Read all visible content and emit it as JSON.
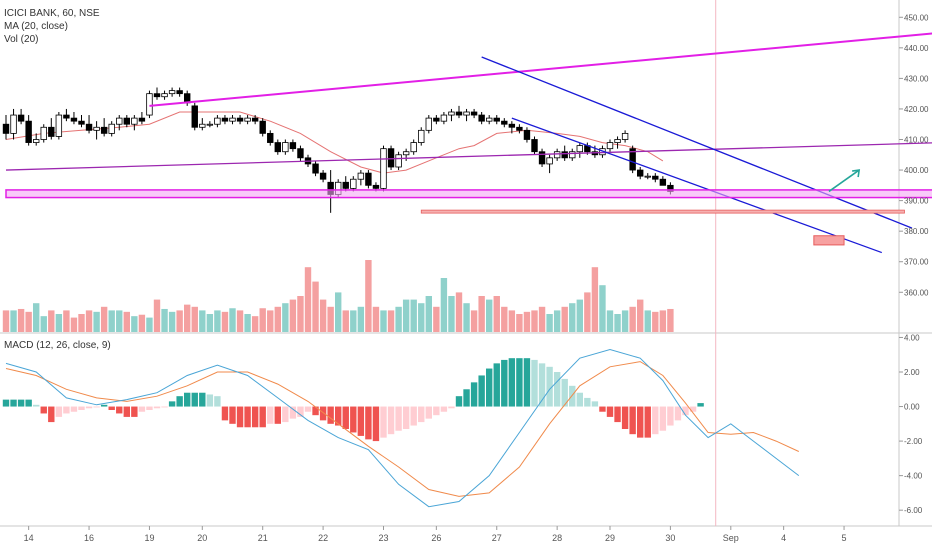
{
  "header": {
    "symbol_line": "ICICI BANK, 60, NSE",
    "ma_label": "MA (20, close)",
    "vol_label": "Vol (20)"
  },
  "macd_header": "MACD (12, 26, close, 9)",
  "chart_data": {
    "type": "candlestick",
    "symbol": "ICICI BANK",
    "interval": "60",
    "exchange": "NSE",
    "price_axis": {
      "ylim": [
        347,
        455
      ],
      "ticks": [
        360,
        370,
        380,
        390,
        400,
        410,
        420,
        430,
        440,
        450
      ],
      "tick_labels": [
        "360.00",
        "370.00",
        "380.00",
        "390.00",
        "400.00",
        "410.00",
        "420.00",
        "430.00",
        "440.00",
        "450.00"
      ]
    },
    "macd_axis": {
      "ylim": [
        -6.8,
        4.2
      ],
      "ticks": [
        -6,
        -4,
        -2,
        0,
        2,
        4
      ],
      "tick_labels": [
        "-6.00",
        "-4.00",
        "-2.00",
        "0.00",
        "2.00",
        "4.00"
      ]
    },
    "date_axis": {
      "labels": [
        "14",
        "16",
        "19",
        "20",
        "21",
        "22",
        "23",
        "26",
        "27",
        "28",
        "29",
        "30",
        "Sep",
        "4",
        "5"
      ],
      "slot_index": [
        3,
        11,
        19,
        26,
        34,
        42,
        50,
        57,
        65,
        73,
        80,
        88,
        96,
        103,
        111
      ]
    },
    "candles": [
      {
        "o": 415,
        "h": 418,
        "l": 410,
        "c": 412
      },
      {
        "o": 412,
        "h": 420,
        "l": 410,
        "c": 418
      },
      {
        "o": 418,
        "h": 420,
        "l": 415,
        "c": 416
      },
      {
        "o": 416,
        "h": 418,
        "l": 408,
        "c": 409
      },
      {
        "o": 409,
        "h": 412,
        "l": 408,
        "c": 410
      },
      {
        "o": 410,
        "h": 415,
        "l": 409,
        "c": 414
      },
      {
        "o": 414,
        "h": 417,
        "l": 410,
        "c": 411
      },
      {
        "o": 411,
        "h": 419,
        "l": 410,
        "c": 418
      },
      {
        "o": 418,
        "h": 420,
        "l": 416,
        "c": 417
      },
      {
        "o": 417,
        "h": 419,
        "l": 415,
        "c": 416
      },
      {
        "o": 416,
        "h": 418,
        "l": 414,
        "c": 415
      },
      {
        "o": 415,
        "h": 418,
        "l": 412,
        "c": 413
      },
      {
        "o": 413,
        "h": 416,
        "l": 410,
        "c": 414
      },
      {
        "o": 414,
        "h": 417,
        "l": 411,
        "c": 412
      },
      {
        "o": 412,
        "h": 416,
        "l": 411,
        "c": 415
      },
      {
        "o": 415,
        "h": 418,
        "l": 413,
        "c": 417
      },
      {
        "o": 417,
        "h": 418,
        "l": 414,
        "c": 415
      },
      {
        "o": 415,
        "h": 418,
        "l": 413,
        "c": 417
      },
      {
        "o": 417,
        "h": 419,
        "l": 415,
        "c": 416
      },
      {
        "o": 418,
        "h": 426,
        "l": 417,
        "c": 425
      },
      {
        "o": 425,
        "h": 427,
        "l": 423,
        "c": 424
      },
      {
        "o": 424,
        "h": 426,
        "l": 423,
        "c": 425
      },
      {
        "o": 425,
        "h": 427,
        "l": 424,
        "c": 426
      },
      {
        "o": 426,
        "h": 427,
        "l": 424,
        "c": 425
      },
      {
        "o": 425,
        "h": 426,
        "l": 421,
        "c": 422
      },
      {
        "o": 421,
        "h": 422,
        "l": 413,
        "c": 414
      },
      {
        "o": 414,
        "h": 417,
        "l": 413,
        "c": 415
      },
      {
        "o": 415,
        "h": 416,
        "l": 414,
        "c": 415
      },
      {
        "o": 415,
        "h": 418,
        "l": 414,
        "c": 417
      },
      {
        "o": 417,
        "h": 418,
        "l": 415,
        "c": 416
      },
      {
        "o": 416,
        "h": 418,
        "l": 415,
        "c": 417
      },
      {
        "o": 417,
        "h": 418,
        "l": 415,
        "c": 416
      },
      {
        "o": 416,
        "h": 418,
        "l": 415,
        "c": 417
      },
      {
        "o": 417,
        "h": 418,
        "l": 415,
        "c": 416
      },
      {
        "o": 416,
        "h": 417,
        "l": 411,
        "c": 412
      },
      {
        "o": 412,
        "h": 413,
        "l": 408,
        "c": 409
      },
      {
        "o": 409,
        "h": 410,
        "l": 405,
        "c": 406
      },
      {
        "o": 406,
        "h": 410,
        "l": 405,
        "c": 409
      },
      {
        "o": 409,
        "h": 410,
        "l": 406,
        "c": 407
      },
      {
        "o": 407,
        "h": 408,
        "l": 403,
        "c": 404
      },
      {
        "o": 404,
        "h": 405,
        "l": 401,
        "c": 402
      },
      {
        "o": 402,
        "h": 403,
        "l": 398,
        "c": 399
      },
      {
        "o": 399,
        "h": 400,
        "l": 396,
        "c": 397
      },
      {
        "o": 396,
        "h": 400,
        "l": 386,
        "c": 392
      },
      {
        "o": 392,
        "h": 397,
        "l": 391,
        "c": 396
      },
      {
        "o": 396,
        "h": 398,
        "l": 393,
        "c": 394
      },
      {
        "o": 394,
        "h": 398,
        "l": 393,
        "c": 397
      },
      {
        "o": 397,
        "h": 400,
        "l": 395,
        "c": 399
      },
      {
        "o": 399,
        "h": 400,
        "l": 394,
        "c": 395
      },
      {
        "o": 395,
        "h": 396,
        "l": 393,
        "c": 394
      },
      {
        "o": 394,
        "h": 408,
        "l": 393,
        "c": 407
      },
      {
        "o": 407,
        "h": 408,
        "l": 400,
        "c": 401
      },
      {
        "o": 401,
        "h": 406,
        "l": 400,
        "c": 405
      },
      {
        "o": 405,
        "h": 407,
        "l": 403,
        "c": 406
      },
      {
        "o": 406,
        "h": 410,
        "l": 405,
        "c": 409
      },
      {
        "o": 409,
        "h": 414,
        "l": 408,
        "c": 413
      },
      {
        "o": 413,
        "h": 418,
        "l": 412,
        "c": 417
      },
      {
        "o": 417,
        "h": 418,
        "l": 415,
        "c": 416
      },
      {
        "o": 416,
        "h": 419,
        "l": 415,
        "c": 418
      },
      {
        "o": 418,
        "h": 420,
        "l": 416,
        "c": 419
      },
      {
        "o": 419,
        "h": 421,
        "l": 417,
        "c": 418
      },
      {
        "o": 418,
        "h": 420,
        "l": 416,
        "c": 419
      },
      {
        "o": 419,
        "h": 420,
        "l": 417,
        "c": 418
      },
      {
        "o": 418,
        "h": 419,
        "l": 415,
        "c": 416
      },
      {
        "o": 416,
        "h": 418,
        "l": 415,
        "c": 417
      },
      {
        "o": 417,
        "h": 418,
        "l": 415,
        "c": 416
      },
      {
        "o": 416,
        "h": 417,
        "l": 414,
        "c": 415
      },
      {
        "o": 415,
        "h": 416,
        "l": 412,
        "c": 414
      },
      {
        "o": 414,
        "h": 415,
        "l": 412,
        "c": 413
      },
      {
        "o": 413,
        "h": 414,
        "l": 409,
        "c": 410
      },
      {
        "o": 410,
        "h": 411,
        "l": 405,
        "c": 406
      },
      {
        "o": 406,
        "h": 407,
        "l": 401,
        "c": 402
      },
      {
        "o": 402,
        "h": 405,
        "l": 399,
        "c": 404
      },
      {
        "o": 404,
        "h": 407,
        "l": 403,
        "c": 406
      },
      {
        "o": 406,
        "h": 408,
        "l": 403,
        "c": 404
      },
      {
        "o": 404,
        "h": 407,
        "l": 403,
        "c": 406
      },
      {
        "o": 406,
        "h": 409,
        "l": 404,
        "c": 408
      },
      {
        "o": 408,
        "h": 409,
        "l": 405,
        "c": 406
      },
      {
        "o": 406,
        "h": 408,
        "l": 404,
        "c": 405
      },
      {
        "o": 405,
        "h": 408,
        "l": 404,
        "c": 407
      },
      {
        "o": 407,
        "h": 410,
        "l": 406,
        "c": 409
      },
      {
        "o": 409,
        "h": 411,
        "l": 407,
        "c": 410
      },
      {
        "o": 410,
        "h": 413,
        "l": 409,
        "c": 412
      },
      {
        "o": 407,
        "h": 408,
        "l": 399,
        "c": 400
      },
      {
        "o": 400,
        "h": 401,
        "l": 397,
        "c": 398
      },
      {
        "o": 398,
        "h": 399,
        "l": 397,
        "c": 398
      },
      {
        "o": 398,
        "h": 399,
        "l": 396,
        "c": 397
      },
      {
        "o": 397,
        "h": 398,
        "l": 395,
        "c": 395
      },
      {
        "o": 395,
        "h": 396,
        "l": 392,
        "c": 393
      }
    ],
    "ma20": [
      {
        "i": 0,
        "v": 410
      },
      {
        "i": 5,
        "v": 412
      },
      {
        "i": 10,
        "v": 413
      },
      {
        "i": 15,
        "v": 414
      },
      {
        "i": 19,
        "v": 415
      },
      {
        "i": 23,
        "v": 419
      },
      {
        "i": 27,
        "v": 419
      },
      {
        "i": 31,
        "v": 419
      },
      {
        "i": 35,
        "v": 416
      },
      {
        "i": 39,
        "v": 412
      },
      {
        "i": 43,
        "v": 406
      },
      {
        "i": 47,
        "v": 401
      },
      {
        "i": 50,
        "v": 399
      },
      {
        "i": 53,
        "v": 400
      },
      {
        "i": 57,
        "v": 404
      },
      {
        "i": 60,
        "v": 407
      },
      {
        "i": 62,
        "v": 408
      },
      {
        "i": 65,
        "v": 412
      },
      {
        "i": 69,
        "v": 413
      },
      {
        "i": 73,
        "v": 412
      },
      {
        "i": 76,
        "v": 411
      },
      {
        "i": 79,
        "v": 409
      },
      {
        "i": 82,
        "v": 408
      },
      {
        "i": 85,
        "v": 406
      },
      {
        "i": 87,
        "v": 403
      }
    ],
    "volume_levels": [
      0.3,
      0.3,
      0.32,
      0.28,
      0.4,
      0.22,
      0.3,
      0.25,
      0.3,
      0.2,
      0.25,
      0.3,
      0.28,
      0.35,
      0.3,
      0.3,
      0.28,
      0.22,
      0.24,
      0.2,
      0.45,
      0.32,
      0.28,
      0.3,
      0.38,
      0.35,
      0.3,
      0.25,
      0.3,
      0.28,
      0.33,
      0.3,
      0.25,
      0.22,
      0.33,
      0.3,
      0.35,
      0.4,
      0.45,
      0.5,
      0.9,
      0.7,
      0.45,
      0.35,
      0.55,
      0.3,
      0.3,
      0.35,
      1.0,
      0.35,
      0.3,
      0.3,
      0.35,
      0.45,
      0.45,
      0.4,
      0.5,
      0.35,
      0.75,
      0.5,
      0.55,
      0.4,
      0.3,
      0.5,
      0.45,
      0.5,
      0.35,
      0.3,
      0.25,
      0.28,
      0.3,
      0.35,
      0.25,
      0.3,
      0.35,
      0.4,
      0.45,
      0.55,
      0.9,
      0.65,
      0.3,
      0.25,
      0.3,
      0.35,
      0.45,
      0.3,
      0.28,
      0.3,
      0.32,
      0.28,
      0.3,
      0.4,
      0.28
    ],
    "macd_histogram": [
      0.4,
      0.4,
      0.4,
      0.4,
      0.1,
      -0.4,
      -0.9,
      -0.6,
      -0.4,
      -0.3,
      -0.2,
      -0.1,
      -0.05,
      0.1,
      -0.2,
      -0.4,
      -0.6,
      -0.6,
      -0.3,
      -0.2,
      -0.1,
      -0.05,
      0.3,
      0.6,
      0.8,
      0.8,
      0.8,
      0.7,
      0.6,
      -0.8,
      -1.0,
      -1.2,
      -1.2,
      -1.2,
      -1.2,
      -1.0,
      -1.0,
      -0.9,
      -0.7,
      -0.6,
      -0.3,
      -0.5,
      -0.8,
      -1.0,
      -1.1,
      -1.3,
      -1.5,
      -1.7,
      -1.9,
      -2.0,
      -1.8,
      -1.6,
      -1.4,
      -1.3,
      -1.1,
      -0.9,
      -0.7,
      -0.5,
      -0.3,
      -0.1,
      0.6,
      1.0,
      1.4,
      1.8,
      2.2,
      2.5,
      2.7,
      2.8,
      2.8,
      2.8,
      2.7,
      2.5,
      2.3,
      2.0,
      1.6,
      1.2,
      0.8,
      0.5,
      0.3,
      -0.3,
      -0.6,
      -0.9,
      -1.3,
      -1.6,
      -1.8,
      -1.8,
      -1.6,
      -1.4,
      -1.1,
      -0.8,
      -0.5,
      -0.3,
      0.2
    ],
    "macd_line": [
      {
        "i": 0,
        "v": 2.5
      },
      {
        "i": 4,
        "v": 2.0
      },
      {
        "i": 8,
        "v": 0.5
      },
      {
        "i": 12,
        "v": 0.1
      },
      {
        "i": 16,
        "v": 0.4
      },
      {
        "i": 20,
        "v": 0.8
      },
      {
        "i": 24,
        "v": 1.8
      },
      {
        "i": 28,
        "v": 2.4
      },
      {
        "i": 32,
        "v": 1.8
      },
      {
        "i": 36,
        "v": 0.5
      },
      {
        "i": 40,
        "v": -0.8
      },
      {
        "i": 44,
        "v": -1.8
      },
      {
        "i": 48,
        "v": -2.5
      },
      {
        "i": 52,
        "v": -4.5
      },
      {
        "i": 56,
        "v": -5.8
      },
      {
        "i": 60,
        "v": -5.5
      },
      {
        "i": 64,
        "v": -4.0
      },
      {
        "i": 68,
        "v": -1.5
      },
      {
        "i": 72,
        "v": 1.0
      },
      {
        "i": 76,
        "v": 2.8
      },
      {
        "i": 80,
        "v": 3.3
      },
      {
        "i": 84,
        "v": 2.8
      },
      {
        "i": 87,
        "v": 1.5
      },
      {
        "i": 90,
        "v": -0.5
      },
      {
        "i": 93,
        "v": -1.8
      },
      {
        "i": 96,
        "v": -1.0
      },
      {
        "i": 99,
        "v": -2.0
      },
      {
        "i": 102,
        "v": -3.0
      },
      {
        "i": 105,
        "v": -4.0
      }
    ],
    "signal_line": [
      {
        "i": 0,
        "v": 2.2
      },
      {
        "i": 4,
        "v": 1.8
      },
      {
        "i": 8,
        "v": 1.0
      },
      {
        "i": 12,
        "v": 0.5
      },
      {
        "i": 16,
        "v": 0.3
      },
      {
        "i": 20,
        "v": 0.6
      },
      {
        "i": 24,
        "v": 1.2
      },
      {
        "i": 28,
        "v": 2.0
      },
      {
        "i": 32,
        "v": 2.0
      },
      {
        "i": 36,
        "v": 1.3
      },
      {
        "i": 40,
        "v": 0.3
      },
      {
        "i": 44,
        "v": -1.0
      },
      {
        "i": 48,
        "v": -2.3
      },
      {
        "i": 52,
        "v": -3.5
      },
      {
        "i": 56,
        "v": -4.8
      },
      {
        "i": 60,
        "v": -5.2
      },
      {
        "i": 64,
        "v": -5.0
      },
      {
        "i": 68,
        "v": -3.5
      },
      {
        "i": 72,
        "v": -1.0
      },
      {
        "i": 76,
        "v": 1.2
      },
      {
        "i": 80,
        "v": 2.3
      },
      {
        "i": 84,
        "v": 2.6
      },
      {
        "i": 87,
        "v": 1.8
      },
      {
        "i": 90,
        "v": 0.2
      },
      {
        "i": 93,
        "v": -1.5
      },
      {
        "i": 96,
        "v": -1.6
      },
      {
        "i": 99,
        "v": -1.5
      },
      {
        "i": 102,
        "v": -2.0
      },
      {
        "i": 105,
        "v": -2.6
      }
    ],
    "drawings": [
      {
        "type": "trendline",
        "color": "#e21fe6",
        "from": {
          "i": 19,
          "v": 421
        },
        "to": {
          "i": 124,
          "v": 445
        }
      },
      {
        "type": "trendline",
        "color": "#9c27b0",
        "from": {
          "i": 0,
          "v": 400
        },
        "to": {
          "i": 124,
          "v": 409
        }
      },
      {
        "type": "trendline",
        "color": "#1a1ad6",
        "from": {
          "i": 63,
          "v": 437
        },
        "to": {
          "i": 120,
          "v": 381
        }
      },
      {
        "type": "trendline",
        "color": "#1a1ad6",
        "from": {
          "i": 67,
          "v": 417
        },
        "to": {
          "i": 116,
          "v": 373
        }
      },
      {
        "type": "horizontal_band",
        "color": "#e21fe6",
        "from_i": 0,
        "to_i": 124,
        "low": 391,
        "high": 393.5
      },
      {
        "type": "horizontal_line",
        "color": "#e65c5c",
        "from_i": 55,
        "to_i": 119,
        "v": 386.4
      },
      {
        "type": "box",
        "color": "#e65c5c",
        "from_i": 107,
        "to_i": 111,
        "low": 375.5,
        "high": 378.5
      },
      {
        "type": "arrow",
        "color": "#26a69a",
        "from": {
          "i": 109,
          "v": 393
        },
        "to": {
          "i": 113,
          "v": 400
        }
      }
    ],
    "crosshair_slot": 94,
    "colors": {
      "up": "#ffffff",
      "down": "#000000",
      "ma": "#e57373",
      "vol_up": "#8fd1cb",
      "vol_down": "#f4a0a0",
      "hist_up_strong": "#26a69a",
      "hist_up_weak": "#b2dfdb",
      "hist_down_strong": "#ef5350",
      "hist_down_weak": "#ffcdd2",
      "macd_line": "#4aa5d6",
      "signal_line": "#f08a4b"
    }
  }
}
